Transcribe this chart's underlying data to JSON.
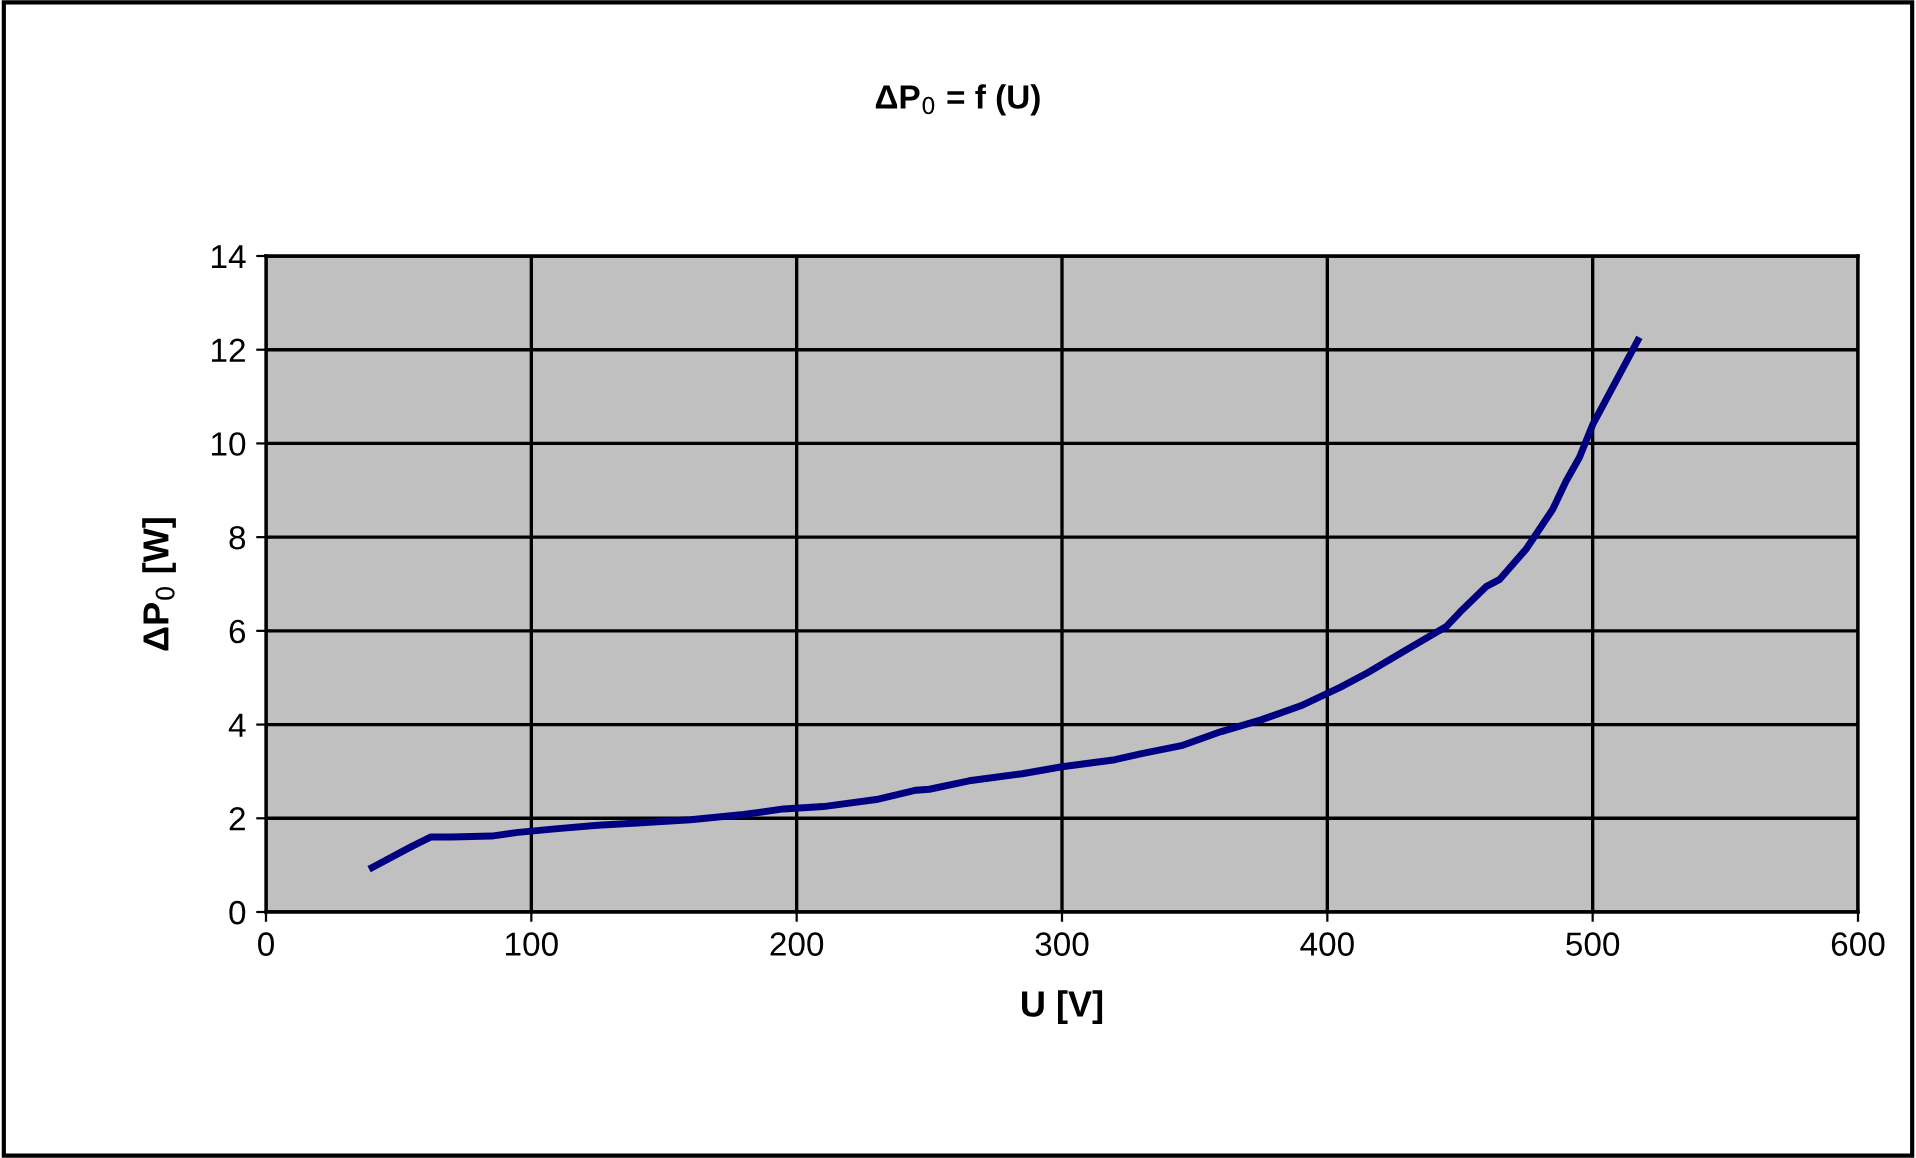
{
  "chart_data": {
    "type": "line",
    "title": "ΔP$_{0}$ = f (U)",
    "xlabel": "U [V]",
    "ylabel": "ΔP$_{0}$ [W]",
    "xlim": [
      0,
      600
    ],
    "xticks": [
      0,
      100,
      200,
      300,
      400,
      500,
      600
    ],
    "ylim": [
      0,
      14
    ],
    "yticks": [
      0,
      2,
      4,
      6,
      8,
      10,
      12,
      14
    ],
    "grid": true,
    "marker": "none",
    "line_style": "solid",
    "series": [
      {
        "color": "#000080",
        "x": [
          40,
          50,
          55,
          62,
          70,
          85,
          95,
          110,
          125,
          140,
          160,
          180,
          195,
          210,
          230,
          245,
          250,
          265,
          285,
          300,
          320,
          330,
          345,
          360,
          375,
          390,
          405,
          415,
          430,
          445,
          450,
          460,
          465,
          475,
          485,
          490,
          495,
          500,
          517
        ],
        "values": [
          0.95,
          1.25,
          1.4,
          1.6,
          1.6,
          1.62,
          1.7,
          1.78,
          1.85,
          1.9,
          1.97,
          2.08,
          2.2,
          2.25,
          2.4,
          2.6,
          2.62,
          2.8,
          2.95,
          3.1,
          3.25,
          3.38,
          3.55,
          3.85,
          4.1,
          4.4,
          4.8,
          5.1,
          5.6,
          6.1,
          6.4,
          6.95,
          7.1,
          7.75,
          8.6,
          9.2,
          9.7,
          10.4,
          12.2
        ]
      }
    ]
  }
}
